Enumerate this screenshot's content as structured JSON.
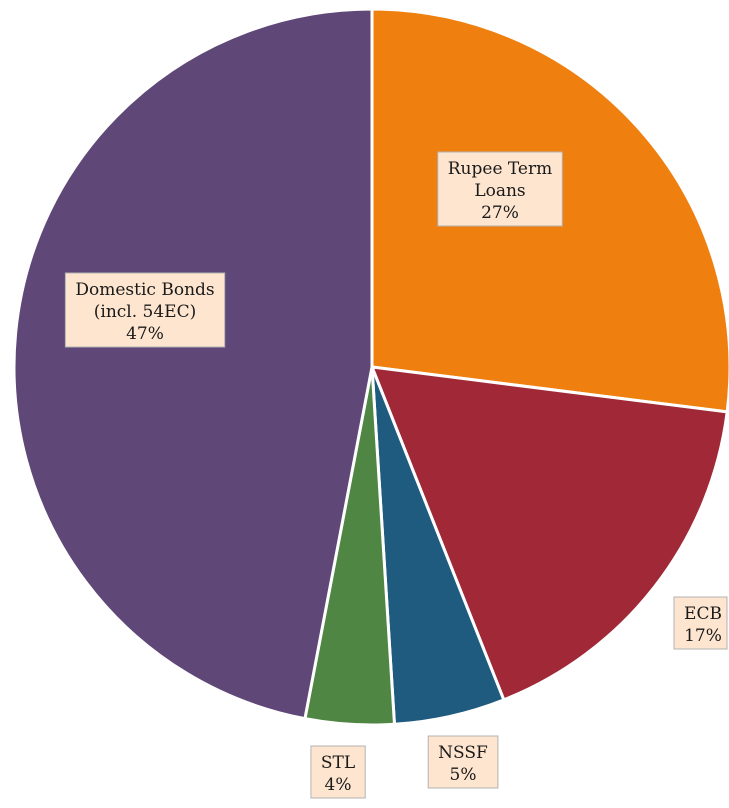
{
  "chart_data": {
    "type": "pie",
    "title": "",
    "slices": [
      {
        "label": "Rupee Term Loans",
        "label_lines": [
          "Rupee Term",
          "Loans"
        ],
        "value": 27,
        "value_label": "27%",
        "color": "#ef8010"
      },
      {
        "label": "ECB",
        "label_lines": [
          "ECB"
        ],
        "value": 17,
        "value_label": "17%",
        "color": "#a02837"
      },
      {
        "label": "NSSF",
        "label_lines": [
          "NSSF"
        ],
        "value": 5,
        "value_label": "5%",
        "color": "#1f5a7f"
      },
      {
        "label": "STL",
        "label_lines": [
          "STL"
        ],
        "value": 4,
        "value_label": "4%",
        "color": "#4f8644"
      },
      {
        "label": "Domestic Bonds (incl. 54EC)",
        "label_lines": [
          "Domestic Bonds",
          "(incl. 54EC)"
        ],
        "value": 47,
        "value_label": "47%",
        "color": "#5f4778"
      }
    ],
    "label_background": "#fde5cf",
    "legend": "none"
  }
}
